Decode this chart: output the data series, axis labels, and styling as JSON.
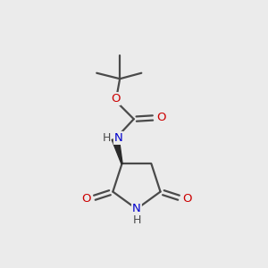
{
  "bg_color": "#ebebeb",
  "bond_color": "#4a4a4a",
  "oxygen_color": "#cc0000",
  "nitrogen_color": "#0000cc",
  "line_width": 1.6,
  "font_size_atom": 9.5,
  "fig_width": 3.0,
  "fig_height": 3.0,
  "dpi": 100,
  "xlim": [
    0,
    10
  ],
  "ylim": [
    0,
    10
  ]
}
